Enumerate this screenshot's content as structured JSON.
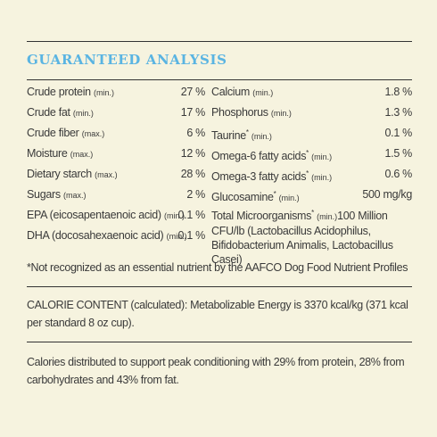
{
  "title": "GUARANTEED ANALYSIS",
  "left": [
    {
      "name": "Crude protein",
      "qualifier": "(min.)",
      "value": "27 %"
    },
    {
      "name": "Crude fat",
      "qualifier": "(min.)",
      "value": "17 %"
    },
    {
      "name": "Crude fiber",
      "qualifier": "(max.)",
      "value": "6 %"
    },
    {
      "name": "Moisture",
      "qualifier": "(max.)",
      "value": "12 %"
    },
    {
      "name": "Dietary starch",
      "qualifier": "(max.)",
      "value": "28 %"
    },
    {
      "name": "Sugars",
      "qualifier": "(max.)",
      "value": "2 %"
    },
    {
      "name": "EPA (eicosapentaenoic acid)",
      "qualifier": "(min.)",
      "value": "0.1 %"
    },
    {
      "name": "DHA (docosahexaenoic acid)",
      "qualifier": "(min.)",
      "value": "0.1 %"
    }
  ],
  "right": [
    {
      "name": "Calcium",
      "qualifier": "(min.)",
      "value": "1.8 %"
    },
    {
      "name": "Phosphorus",
      "qualifier": "(min.)",
      "value": "1.3 %"
    },
    {
      "name": "Taurine",
      "mark": "*",
      "qualifier": "(min.)",
      "value": "0.1 %"
    },
    {
      "name": "Omega-6 fatty acids",
      "mark": "*",
      "qualifier": "(min.)",
      "value": "1.5 %"
    },
    {
      "name": "Omega-3 fatty acids",
      "mark": "*",
      "qualifier": "(min.)",
      "value": "0.6 %"
    },
    {
      "name": "Glucosamine",
      "mark": "*",
      "qualifier": "(min.)",
      "value": "500 mg/kg"
    }
  ],
  "microorganisms": {
    "name": "Total Microorganisms",
    "mark": "*",
    "qualifier": "(min.)",
    "value": "100 Million CFU/lb",
    "detail": "(Lactobacillus Acidophilus, Bifidobacterium Animalis, Lactobacillus Casei)"
  },
  "footnote": "*Not recognized as an essential nutrient by the AAFCO Dog Food Nutrient Profiles",
  "calorie": "CALORIE CONTENT (calculated): Metabolizable Energy is 3370 kcal/kg (371 kcal per standard 8 oz cup).",
  "distribution": "Calories distributed to support peak conditioning with 29% from protein, 28% from carbohydrates and 43% from fat."
}
